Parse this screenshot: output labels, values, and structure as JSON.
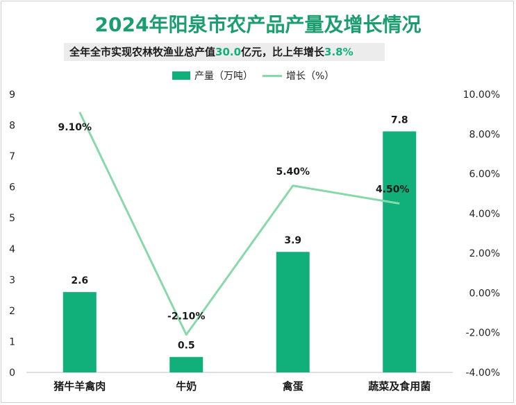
{
  "title": "2024年阳泉市农产品产量及增长情况",
  "subtitle": {
    "prefix": "全年全市实现农林牧渔业总产值",
    "value": "30.0",
    "mid": "亿元，比上年增长",
    "growth": "3.8%"
  },
  "colors": {
    "bar": "#11b07a",
    "line": "#88d9a9",
    "title": "#1a9e6e",
    "text": "#1a1a1a"
  },
  "chart_data": {
    "type": "bar",
    "categories": [
      "猪牛羊禽肉",
      "牛奶",
      "禽蛋",
      "蔬菜及食用菌"
    ],
    "series": [
      {
        "name": "产量（万吨）",
        "type": "bar",
        "axis": "left",
        "values": [
          2.6,
          0.5,
          3.9,
          7.8
        ],
        "labels": [
          "2.6",
          "0.5",
          "3.9",
          "7.8"
        ]
      },
      {
        "name": "增长（%）",
        "type": "line",
        "axis": "right",
        "values": [
          9.1,
          -2.1,
          5.4,
          4.5
        ],
        "labels": [
          "9.10%",
          "-2.10%",
          "5.40%",
          "4.50%"
        ]
      }
    ],
    "y_left": {
      "min": 0,
      "max": 9,
      "ticks": [
        "0",
        "1",
        "2",
        "3",
        "4",
        "5",
        "6",
        "7",
        "8",
        "9"
      ]
    },
    "y_right": {
      "min": -4,
      "max": 10,
      "ticks": [
        "-4.00%",
        "-2.00%",
        "0.00%",
        "2.00%",
        "4.00%",
        "6.00%",
        "8.00%",
        "10.00%"
      ]
    },
    "grid": false,
    "legend_position": "top"
  }
}
